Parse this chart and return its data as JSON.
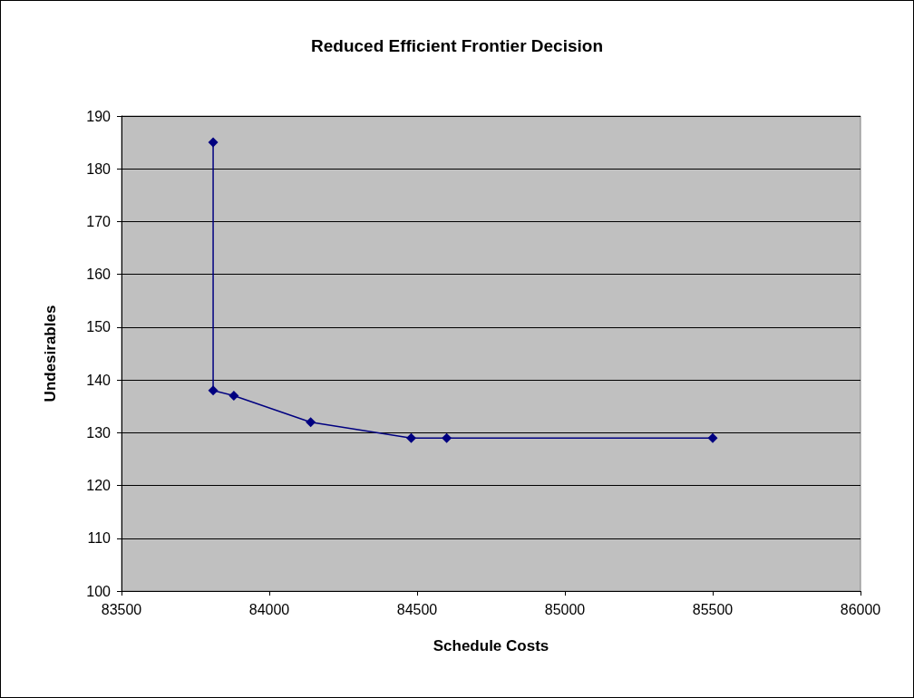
{
  "chart_data": {
    "type": "line",
    "title": "Reduced Efficient Frontier Decision",
    "xlabel": "Schedule Costs",
    "ylabel": "Undesirables",
    "x": [
      83810,
      83810,
      83880,
      84140,
      84480,
      84600,
      85500
    ],
    "series": [
      {
        "color": "#000080",
        "values": [
          185,
          138,
          137,
          132,
          129,
          129,
          129
        ]
      }
    ],
    "xlim": [
      83500,
      86000
    ],
    "xticks": [
      83500,
      84000,
      84500,
      85000,
      85500,
      86000
    ],
    "ylim": [
      100,
      190
    ],
    "yticks": [
      100,
      110,
      120,
      130,
      140,
      150,
      160,
      170,
      180,
      190
    ],
    "grid": "y",
    "marker": "diamond",
    "line_style": "solid"
  }
}
